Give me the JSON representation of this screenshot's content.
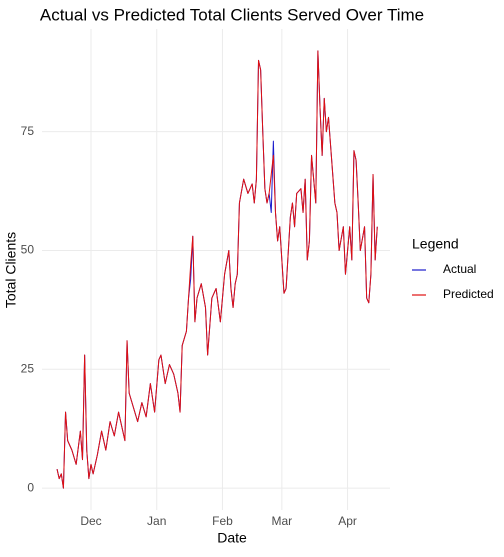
{
  "chart_data": {
    "type": "line",
    "title": "Actual vs Predicted Total Clients Served Over Time",
    "xlabel": "Date",
    "ylabel": "Total Clients",
    "legend_title": "Legend",
    "legend": "right",
    "grid": true,
    "x": [
      -16,
      -15,
      -14,
      -13,
      -12,
      -11,
      -9,
      -7,
      -5,
      -4,
      -3,
      -2,
      -1,
      0,
      1,
      3,
      5,
      7,
      9,
      11,
      13,
      14,
      16,
      17,
      18,
      20,
      22,
      24,
      26,
      28,
      30,
      32,
      33,
      35,
      37,
      39,
      41,
      42,
      43,
      45,
      46,
      47,
      48,
      49,
      50,
      52,
      54,
      55,
      57,
      59,
      61,
      63,
      65,
      66,
      67,
      68,
      69,
      70,
      72,
      74,
      76,
      77,
      78,
      79,
      80,
      81,
      82,
      83,
      84,
      85,
      86,
      87,
      88,
      89,
      90,
      91,
      92,
      94,
      95,
      96,
      97,
      99,
      100,
      101,
      102,
      103,
      104,
      106,
      107,
      108,
      109,
      110,
      111,
      112,
      113,
      115,
      116,
      117,
      119,
      120,
      122,
      123,
      124,
      125,
      126,
      127,
      129,
      130,
      131,
      132,
      133,
      134,
      135
    ],
    "series": [
      {
        "name": "Actual",
        "color": "#1a1acc",
        "values": [
          4,
          2,
          3,
          0,
          16,
          10,
          8,
          5,
          12,
          6,
          28,
          8,
          2,
          5,
          3,
          7,
          12,
          8,
          14,
          11,
          16,
          14,
          10,
          31,
          20,
          17,
          14,
          18,
          15,
          22,
          16,
          27,
          28,
          22,
          26,
          24,
          20,
          16,
          30,
          33,
          40,
          44,
          53,
          35,
          40,
          43,
          38,
          28,
          40,
          42,
          35,
          45,
          50,
          42,
          38,
          43,
          45,
          60,
          65,
          62,
          64,
          60,
          65,
          90,
          88,
          75,
          63,
          60,
          62,
          58,
          73,
          58,
          52,
          55,
          48,
          41,
          42,
          57,
          60,
          55,
          62,
          63,
          58,
          65,
          48,
          52,
          70,
          60,
          92,
          80,
          70,
          82,
          75,
          78,
          72,
          60,
          58,
          50,
          55,
          45,
          55,
          48,
          71,
          69,
          60,
          50,
          55,
          40,
          39,
          45,
          66,
          48,
          55
        ]
      },
      {
        "name": "Predicted",
        "color": "#e01010",
        "values": [
          4,
          2,
          3,
          0,
          16,
          10,
          8,
          5,
          12,
          6,
          28,
          8,
          2,
          5,
          3,
          7,
          12,
          8,
          14,
          11,
          16,
          14,
          10,
          31,
          20,
          17,
          14,
          18,
          15,
          22,
          16,
          27,
          28,
          22,
          26,
          24,
          20,
          16,
          30,
          33,
          40,
          47,
          53,
          35,
          40,
          43,
          38,
          28,
          40,
          42,
          35,
          45,
          50,
          42,
          38,
          43,
          45,
          60,
          65,
          62,
          64,
          60,
          65,
          90,
          88,
          75,
          63,
          60,
          62,
          66,
          70,
          58,
          52,
          55,
          48,
          41,
          42,
          57,
          60,
          55,
          62,
          63,
          58,
          65,
          48,
          52,
          70,
          60,
          92,
          80,
          70,
          82,
          75,
          78,
          72,
          60,
          58,
          50,
          55,
          45,
          55,
          48,
          71,
          69,
          60,
          50,
          55,
          40,
          39,
          45,
          66,
          48,
          55
        ]
      }
    ],
    "xlim": [
      -23.1,
      141
    ],
    "xticks": [
      {
        "value": 0,
        "label": "Dec"
      },
      {
        "value": 31,
        "label": "Jan"
      },
      {
        "value": 62,
        "label": "Feb"
      },
      {
        "value": 90,
        "label": "Mar"
      },
      {
        "value": 121,
        "label": "Apr"
      }
    ],
    "ylim": [
      -4.6,
      96.6
    ],
    "yticks": [
      0,
      25,
      50,
      75
    ]
  }
}
